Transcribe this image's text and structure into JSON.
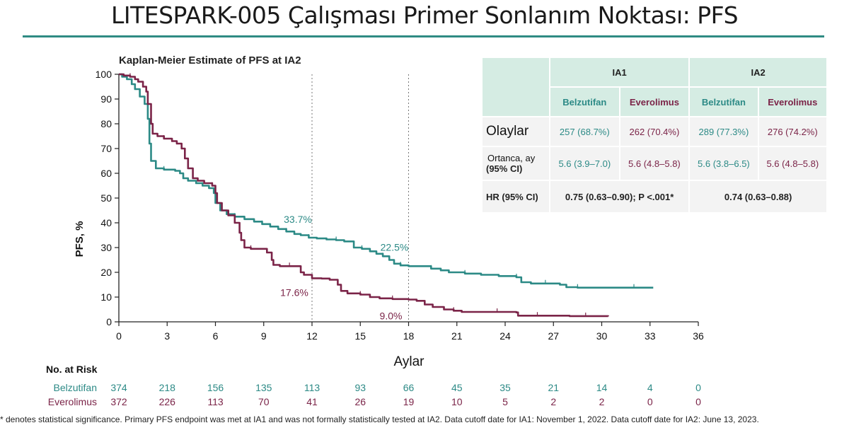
{
  "slide": {
    "title": "LITESPARK-005 Çalışması Primer Sonlanım Noktası: PFS"
  },
  "chart_data": {
    "type": "line",
    "title": "Kaplan-Meier Estimate of PFS at IA2",
    "xlabel": "Aylar",
    "ylabel": "PFS, %",
    "xlim": [
      0,
      36
    ],
    "ylim": [
      0,
      100
    ],
    "xticks": [
      0,
      3,
      6,
      9,
      12,
      15,
      18,
      21,
      24,
      27,
      30,
      33,
      36
    ],
    "yticks": [
      0,
      10,
      20,
      30,
      40,
      50,
      60,
      70,
      80,
      90,
      100
    ],
    "reference_lines_x": [
      12,
      18
    ],
    "colors": {
      "belzutifan": "#2c8a86",
      "everolimus": "#7b2448"
    },
    "series": [
      {
        "name": "Belzutifan",
        "color": "#2c8a86",
        "points": [
          [
            0,
            100
          ],
          [
            0.2,
            99
          ],
          [
            0.5,
            98
          ],
          [
            0.8,
            96
          ],
          [
            1.0,
            94
          ],
          [
            1.3,
            91
          ],
          [
            1.6,
            88
          ],
          [
            1.8,
            82
          ],
          [
            1.9,
            72
          ],
          [
            2.0,
            65
          ],
          [
            2.3,
            62
          ],
          [
            2.8,
            61.5
          ],
          [
            3.5,
            61
          ],
          [
            3.8,
            60
          ],
          [
            4.0,
            58
          ],
          [
            4.3,
            57
          ],
          [
            4.8,
            56
          ],
          [
            5.2,
            55
          ],
          [
            5.6,
            54
          ],
          [
            5.9,
            52
          ],
          [
            6.0,
            48
          ],
          [
            6.3,
            45
          ],
          [
            6.7,
            43.5
          ],
          [
            7.2,
            42.5
          ],
          [
            7.8,
            41.5
          ],
          [
            8.4,
            40.5
          ],
          [
            8.9,
            39.5
          ],
          [
            9.4,
            38.5
          ],
          [
            9.9,
            37.5
          ],
          [
            10.4,
            36.5
          ],
          [
            10.9,
            35.5
          ],
          [
            11.3,
            35
          ],
          [
            11.8,
            34
          ],
          [
            12.3,
            33.7
          ],
          [
            12.9,
            33.3
          ],
          [
            13.5,
            33
          ],
          [
            14.0,
            32.5
          ],
          [
            14.6,
            30
          ],
          [
            15.1,
            29.5
          ],
          [
            15.6,
            28.5
          ],
          [
            16.0,
            27.5
          ],
          [
            16.4,
            26.5
          ],
          [
            16.8,
            25
          ],
          [
            17.1,
            23.5
          ],
          [
            17.5,
            22.8
          ],
          [
            18.0,
            22.5
          ],
          [
            19.0,
            22.5
          ],
          [
            19.4,
            21.5
          ],
          [
            20.0,
            20.8
          ],
          [
            20.5,
            20
          ],
          [
            21.5,
            19.5
          ],
          [
            22.5,
            19
          ],
          [
            23.6,
            18.5
          ],
          [
            24.7,
            18
          ],
          [
            25.0,
            16
          ],
          [
            25.6,
            15.5
          ],
          [
            26.5,
            15.5
          ],
          [
            27.4,
            15
          ],
          [
            27.8,
            14
          ],
          [
            28.5,
            13.8
          ],
          [
            30,
            13.8
          ],
          [
            31,
            13.8
          ],
          [
            32,
            13.8
          ],
          [
            33.2,
            13.8
          ]
        ],
        "annotations": [
          {
            "x": 12,
            "y": 33.7,
            "text": "33.7%"
          },
          {
            "x": 18,
            "y": 22.5,
            "text": "22.5%"
          }
        ]
      },
      {
        "name": "Everolimus",
        "color": "#7b2448",
        "points": [
          [
            0,
            100
          ],
          [
            0.3,
            99.5
          ],
          [
            0.7,
            99
          ],
          [
            1.0,
            98
          ],
          [
            1.2,
            97
          ],
          [
            1.5,
            95
          ],
          [
            1.7,
            93
          ],
          [
            1.8,
            88
          ],
          [
            2.0,
            80
          ],
          [
            2.1,
            76
          ],
          [
            2.4,
            75
          ],
          [
            2.8,
            74
          ],
          [
            3.3,
            73
          ],
          [
            3.6,
            72
          ],
          [
            3.9,
            70
          ],
          [
            4.1,
            66
          ],
          [
            4.3,
            62
          ],
          [
            4.6,
            58
          ],
          [
            4.9,
            57
          ],
          [
            5.3,
            56
          ],
          [
            5.8,
            55
          ],
          [
            6.0,
            52
          ],
          [
            6.1,
            48
          ],
          [
            6.4,
            45
          ],
          [
            6.8,
            43
          ],
          [
            7.2,
            40
          ],
          [
            7.5,
            36
          ],
          [
            7.6,
            33
          ],
          [
            7.8,
            30
          ],
          [
            8.2,
            29.5
          ],
          [
            9.0,
            29.5
          ],
          [
            9.2,
            28
          ],
          [
            9.5,
            25
          ],
          [
            9.6,
            23
          ],
          [
            10.0,
            22.5
          ],
          [
            10.6,
            22.5
          ],
          [
            11.3,
            20
          ],
          [
            11.5,
            19
          ],
          [
            12.0,
            17.6
          ],
          [
            12.6,
            17.5
          ],
          [
            13.1,
            17
          ],
          [
            13.6,
            15
          ],
          [
            13.8,
            12.5
          ],
          [
            14.2,
            11.5
          ],
          [
            15.0,
            11
          ],
          [
            15.6,
            10
          ],
          [
            16.2,
            9.5
          ],
          [
            17.0,
            9.2
          ],
          [
            18.0,
            9.0
          ],
          [
            18.5,
            8.5
          ],
          [
            19.0,
            7
          ],
          [
            19.5,
            6
          ],
          [
            20.2,
            5
          ],
          [
            20.8,
            4.5
          ],
          [
            21.3,
            4
          ],
          [
            22.5,
            4
          ],
          [
            23.5,
            4
          ],
          [
            24.7,
            3.8
          ],
          [
            24.8,
            2.5
          ],
          [
            26,
            2.5
          ],
          [
            27,
            2.5
          ],
          [
            28,
            2.3
          ],
          [
            29,
            2.3
          ],
          [
            30.4,
            2.2
          ]
        ],
        "annotations": [
          {
            "x": 12,
            "y": 17.6,
            "text": "17.6%"
          },
          {
            "x": 18,
            "y": 9.0,
            "text": "9.0%"
          }
        ]
      }
    ],
    "at_risk": {
      "label": "No. at Risk",
      "times": [
        0,
        3,
        6,
        9,
        12,
        15,
        18,
        21,
        24,
        27,
        30,
        33,
        36
      ],
      "rows": [
        {
          "name": "Belzutifan",
          "color": "#2c8a86",
          "values": [
            374,
            218,
            156,
            135,
            113,
            93,
            66,
            45,
            35,
            21,
            14,
            4,
            0
          ]
        },
        {
          "name": "Everolimus",
          "color": "#7b2448",
          "values": [
            372,
            226,
            113,
            70,
            41,
            26,
            19,
            10,
            5,
            2,
            2,
            0,
            0
          ]
        }
      ]
    }
  },
  "table": {
    "ia1": "IA1",
    "ia2": "IA2",
    "belz": "Belzutifan",
    "evero": "Everolimus",
    "events_label": "Olaylar",
    "events": [
      "257 (68.7%)",
      "262 (70.4%)",
      "289 (77.3%)",
      "276 (74.2%)"
    ],
    "median_label_line1": "Ortanca, ay",
    "median_label_line2": "(95% CI)",
    "median": [
      "5.6 (3.9–7.0)",
      "5.6 (4.8–5.8)",
      "5.6 (3.8–6.5)",
      "5.6 (4.8–5.8)"
    ],
    "hr_label": "HR (95% CI)",
    "hr_ia1": "0.75 (0.63–0.90); P <.001*",
    "hr_ia2": "0.74 (0.63–0.88)"
  },
  "footnote": "* denotes statistical significance. Primary PFS endpoint was met at IA1 and was not formally statistically tested at IA2. Data cutoff date for IA1: November 1, 2022. Data cutoff date for IA2: June 13, 2023."
}
